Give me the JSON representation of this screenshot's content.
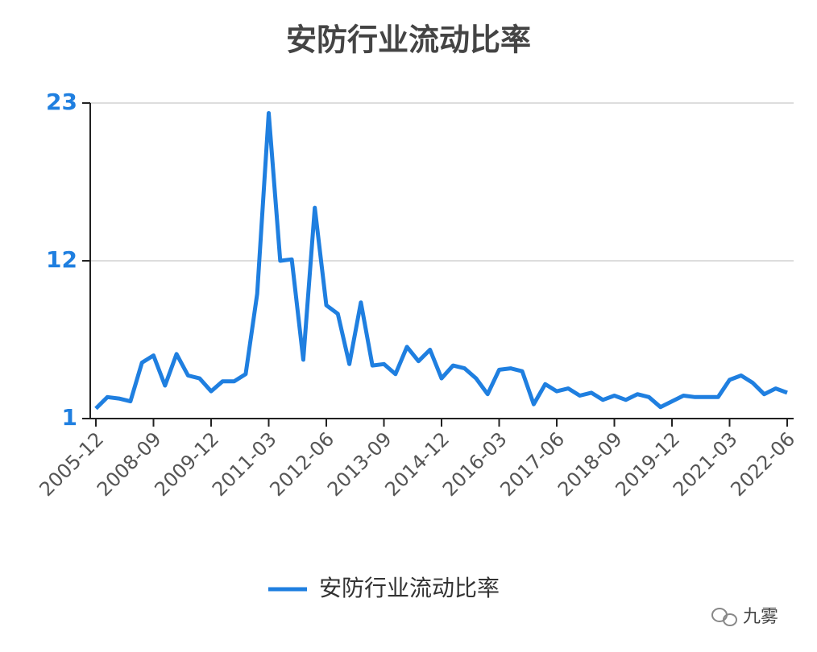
{
  "chart_data": {
    "type": "line",
    "title": "安防行业流动比率",
    "categories": [
      "2005-12",
      null,
      null,
      null,
      null,
      "2008-09",
      null,
      null,
      null,
      null,
      "2009-12",
      null,
      null,
      null,
      null,
      "2011-03",
      null,
      null,
      null,
      null,
      "2012-06",
      null,
      null,
      null,
      null,
      "2013-09",
      null,
      null,
      null,
      null,
      "2014-12",
      null,
      null,
      null,
      null,
      "2016-03",
      null,
      null,
      null,
      null,
      "2017-06",
      null,
      null,
      null,
      null,
      "2018-09",
      null,
      null,
      null,
      null,
      "2019-12",
      null,
      null,
      null,
      null,
      "2021-03",
      null,
      null,
      null,
      null,
      "2022-06"
    ],
    "series": [
      {
        "name": "安防行业流动比率",
        "color": "#1f7fe0",
        "values": [
          1.7,
          2.5,
          2.4,
          2.2,
          4.9,
          5.4,
          3.3,
          5.5,
          4.0,
          3.8,
          2.9,
          3.6,
          3.6,
          4.1,
          9.7,
          22.3,
          12.0,
          12.1,
          5.1,
          15.7,
          8.9,
          8.3,
          4.8,
          9.1,
          4.7,
          4.8,
          4.1,
          6.0,
          5.0,
          5.8,
          3.8,
          4.7,
          4.5,
          3.8,
          2.7,
          4.4,
          4.5,
          4.3,
          2.0,
          3.4,
          2.9,
          3.1,
          2.6,
          2.8,
          2.3,
          2.6,
          2.3,
          2.7,
          2.5,
          1.8,
          2.2,
          2.6,
          2.5,
          2.5,
          2.5,
          3.7,
          4.0,
          3.5,
          2.7,
          3.1,
          2.8
        ]
      }
    ],
    "ylim": [
      1,
      23
    ],
    "yticks": [
      1,
      12,
      23
    ],
    "grid": true,
    "legend": "bottom",
    "watermark": "九雾"
  }
}
